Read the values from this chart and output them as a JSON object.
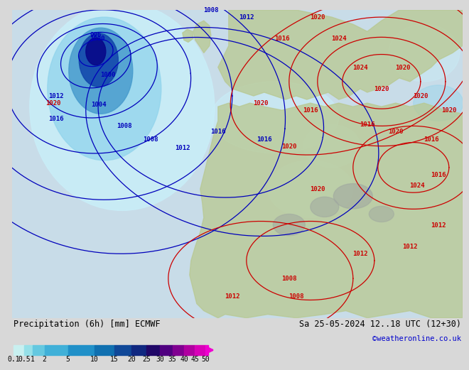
{
  "title_left": "Precipitation (6h) [mm] ECMWF",
  "title_right": "Sa 25-05-2024 12..18 UTC (12+30)",
  "credit": "©weatheronline.co.uk",
  "colorbar_values": [
    "0.1",
    "0.5",
    "1",
    "2",
    "5",
    "10",
    "15",
    "20",
    "25",
    "30",
    "35",
    "40",
    "45",
    "50"
  ],
  "colorbar_colors": [
    "#c8f0f0",
    "#96e0e8",
    "#64c8e0",
    "#40b0d8",
    "#2090c8",
    "#1070b0",
    "#104898",
    "#102880",
    "#200868",
    "#500080",
    "#800090",
    "#b000a0",
    "#d800b8",
    "#f000d0"
  ],
  "bg_color": "#d8d8d8",
  "sea_color": "#c8dce8",
  "land_color": "#b8c890",
  "mountain_color": "#a0a8a0",
  "contour_blue": "#0000bb",
  "contour_red": "#cc0000",
  "prec_colors": {
    "lightest": "#c8eef8",
    "light": "#90d4ec",
    "medium": "#4499cc",
    "dark": "#1044aa",
    "darkest": "#080888"
  },
  "title_fontsize": 8.5,
  "label_fontsize": 6.5,
  "cb_label_fontsize": 7
}
